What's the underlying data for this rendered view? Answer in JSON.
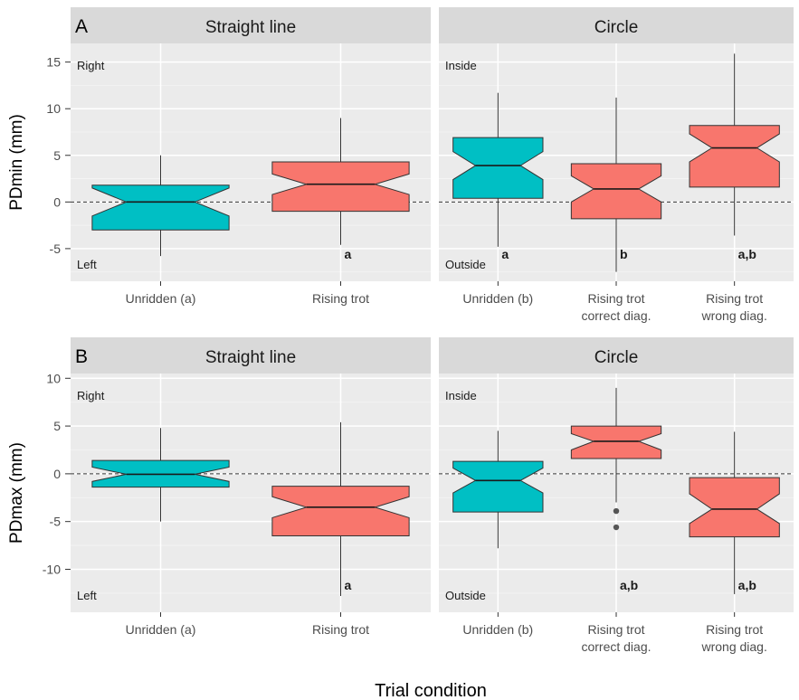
{
  "chart_data": {
    "type": "boxplot",
    "xlabel": "Trial condition",
    "colors": {
      "unridden": "#00BFC4",
      "ridden": "#F8766D"
    },
    "panels": [
      {
        "letter": "A",
        "ylabel": "PDmin (mm)",
        "ylim": [
          -8.5,
          17
        ],
        "yticks": [
          -5,
          0,
          5,
          10,
          15
        ],
        "facets": [
          {
            "title": "Straight line",
            "top_label": "Right",
            "bottom_label": "Left",
            "categories": [
              "Unridden (a)",
              "Rising trot"
            ],
            "boxes": [
              {
                "category": "Unridden (a)",
                "min": -5.8,
                "q1": -3.0,
                "median": 0.0,
                "q3": 1.8,
                "max": 5.0,
                "notch_low": -1.5,
                "notch_high": 1.5,
                "color": "unridden",
                "annotation": "",
                "outliers": []
              },
              {
                "category": "Rising trot",
                "min": -4.6,
                "q1": -1.0,
                "median": 1.9,
                "q3": 4.3,
                "max": 9.0,
                "notch_low": 0.8,
                "notch_high": 3.0,
                "color": "ridden",
                "annotation": "a",
                "outliers": []
              }
            ]
          },
          {
            "title": "Circle",
            "top_label": "Inside",
            "bottom_label": "Outside",
            "categories": [
              "Unridden (b)",
              "Rising trot\ncorrect diag.",
              "Rising trot\nwrong diag."
            ],
            "boxes": [
              {
                "category": "Unridden (b)",
                "min": -4.8,
                "q1": 0.4,
                "median": 3.9,
                "q3": 6.9,
                "max": 11.7,
                "notch_low": 2.4,
                "notch_high": 5.4,
                "color": "unridden",
                "annotation": "a",
                "outliers": []
              },
              {
                "category": "Rising trot correct diag.",
                "min": -7.5,
                "q1": -1.8,
                "median": 1.4,
                "q3": 4.1,
                "max": 11.2,
                "notch_low": 0.0,
                "notch_high": 2.8,
                "color": "ridden",
                "annotation": "b",
                "outliers": []
              },
              {
                "category": "Rising trot wrong diag.",
                "min": -3.6,
                "q1": 1.6,
                "median": 5.8,
                "q3": 8.2,
                "max": 15.9,
                "notch_low": 4.3,
                "notch_high": 7.3,
                "color": "ridden",
                "annotation": "a,b",
                "outliers": []
              }
            ]
          }
        ]
      },
      {
        "letter": "B",
        "ylabel": "PDmax (mm)",
        "ylim": [
          -14.5,
          10.5
        ],
        "yticks": [
          -10,
          -5,
          0,
          5,
          10
        ],
        "facets": [
          {
            "title": "Straight line",
            "top_label": "Right",
            "bottom_label": "Left",
            "categories": [
              "Unridden (a)",
              "Rising trot"
            ],
            "boxes": [
              {
                "category": "Unridden (a)",
                "min": -5.0,
                "q1": -1.4,
                "median": -0.05,
                "q3": 1.4,
                "max": 4.8,
                "notch_low": -0.8,
                "notch_high": 0.7,
                "color": "unridden",
                "annotation": "",
                "outliers": []
              },
              {
                "category": "Rising trot",
                "min": -12.8,
                "q1": -6.5,
                "median": -3.5,
                "q3": -1.3,
                "max": 5.4,
                "notch_low": -4.6,
                "notch_high": -2.4,
                "color": "ridden",
                "annotation": "a",
                "outliers": []
              }
            ]
          },
          {
            "title": "Circle",
            "top_label": "Inside",
            "bottom_label": "Outside",
            "categories": [
              "Unridden (b)",
              "Rising trot\ncorrect diag.",
              "Rising trot\nwrong diag."
            ],
            "boxes": [
              {
                "category": "Unridden (b)",
                "min": -7.8,
                "q1": -4.0,
                "median": -0.7,
                "q3": 1.3,
                "max": 4.5,
                "notch_low": -2.0,
                "notch_high": 0.6,
                "color": "unridden",
                "annotation": "",
                "outliers": []
              },
              {
                "category": "Rising trot correct diag.",
                "min": -3.0,
                "q1": 1.6,
                "median": 3.4,
                "q3": 5.0,
                "max": 9.0,
                "notch_low": 2.5,
                "notch_high": 4.2,
                "color": "ridden",
                "annotation": "a,b",
                "outliers": [
                  -3.9,
                  -5.6
                ]
              },
              {
                "category": "Rising trot wrong diag.",
                "min": -12.6,
                "q1": -6.6,
                "median": -3.7,
                "q3": -0.4,
                "max": 4.4,
                "notch_low": -5.2,
                "notch_high": -2.1,
                "color": "ridden",
                "annotation": "a,b",
                "outliers": []
              }
            ]
          }
        ]
      }
    ]
  }
}
